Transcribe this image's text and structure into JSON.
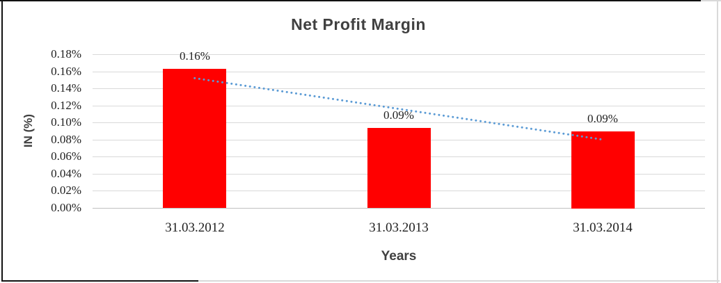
{
  "chart_data": {
    "type": "bar",
    "title": "Net Profit Margin",
    "xlabel": "Years",
    "ylabel": "IN (%)",
    "categories": [
      "31.03.2012",
      "31.03.2013",
      "31.03.2014"
    ],
    "values": [
      0.163,
      0.094,
      0.09
    ],
    "data_labels": [
      "0.16%",
      "0.09%",
      "0.09%"
    ],
    "y_ticks": [
      "0.18%",
      "0.16%",
      "0.14%",
      "0.12%",
      "0.10%",
      "0.08%",
      "0.06%",
      "0.04%",
      "0.02%",
      "0.00%"
    ],
    "ylim": [
      0,
      0.18
    ],
    "y_tick_step": 0.02,
    "grid": true,
    "legend": "none",
    "bar_color": "#ff0000",
    "trendline": {
      "style": "dotted",
      "color": "#5b9bd5",
      "start_value": 0.152,
      "end_value": 0.08
    },
    "colors": {
      "title": "#404040",
      "axis_title": "#404040",
      "tick_label": "#1f1f1f",
      "data_label": "#1f1f1f",
      "gridline": "#d9d9d9",
      "axis_line": "#c0c0c0",
      "background": "#ffffff"
    }
  }
}
